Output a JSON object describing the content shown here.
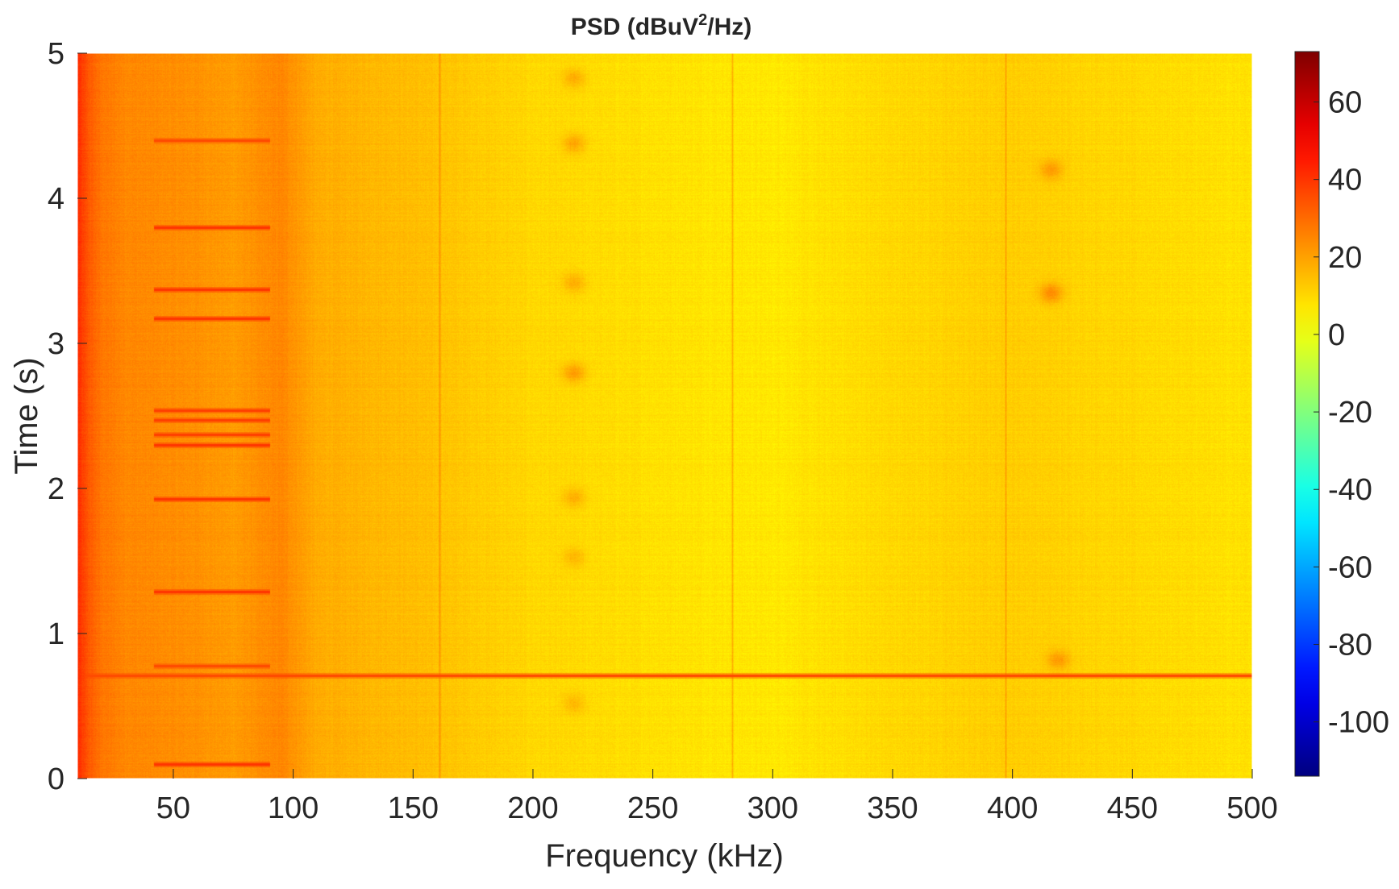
{
  "chart_data": {
    "type": "heatmap",
    "title": "PSD (dBuV",
    "title_superscript": "2",
    "title_suffix": "/Hz)",
    "xlabel": "Frequency (kHz)",
    "ylabel": "Time (s)",
    "xlim": [
      10,
      500
    ],
    "ylim": [
      0,
      5
    ],
    "xticks": [
      50,
      100,
      150,
      200,
      250,
      300,
      350,
      400,
      450,
      500
    ],
    "yticks": [
      0,
      1,
      2,
      3,
      4,
      5
    ],
    "colorbar": {
      "colormap": "jet",
      "limits": [
        -114,
        73
      ],
      "ticks": [
        60,
        40,
        20,
        0,
        -20,
        -40,
        -60,
        -80,
        -100
      ]
    },
    "grid": false,
    "frequency_profile_khz": [
      10,
      12,
      15,
      20,
      30,
      45,
      60,
      75,
      85,
      95,
      110,
      150,
      200,
      300,
      350,
      400,
      500
    ],
    "frequency_profile_db": [
      42,
      38,
      33,
      28,
      25,
      24,
      23,
      21,
      23,
      25,
      18,
      15,
      10,
      7,
      10,
      12,
      8
    ],
    "narrowband_lines_khz": [
      161,
      283,
      397
    ],
    "broadband_bursts": [
      {
        "time_s": 0.1,
        "f_start_khz": 42,
        "f_end_khz": 90,
        "level_db": 40
      },
      {
        "time_s": 0.71,
        "f_start_khz": 10,
        "f_end_khz": 500,
        "level_db": 36
      },
      {
        "time_s": 0.78,
        "f_start_khz": 42,
        "f_end_khz": 90,
        "level_db": 36
      },
      {
        "time_s": 1.29,
        "f_start_khz": 42,
        "f_end_khz": 90,
        "level_db": 40
      },
      {
        "time_s": 1.93,
        "f_start_khz": 42,
        "f_end_khz": 90,
        "level_db": 40
      },
      {
        "time_s": 2.3,
        "f_start_khz": 42,
        "f_end_khz": 90,
        "level_db": 40
      },
      {
        "time_s": 2.37,
        "f_start_khz": 42,
        "f_end_khz": 90,
        "level_db": 38
      },
      {
        "time_s": 2.47,
        "f_start_khz": 42,
        "f_end_khz": 90,
        "level_db": 38
      },
      {
        "time_s": 2.54,
        "f_start_khz": 42,
        "f_end_khz": 90,
        "level_db": 38
      },
      {
        "time_s": 3.17,
        "f_start_khz": 42,
        "f_end_khz": 90,
        "level_db": 40
      },
      {
        "time_s": 3.37,
        "f_start_khz": 42,
        "f_end_khz": 90,
        "level_db": 40
      },
      {
        "time_s": 3.8,
        "f_start_khz": 42,
        "f_end_khz": 90,
        "level_db": 40
      },
      {
        "time_s": 4.4,
        "f_start_khz": 42,
        "f_end_khz": 90,
        "level_db": 36
      }
    ],
    "hotspots": [
      {
        "f_khz": 217,
        "time_s": 4.83,
        "level_db": 20
      },
      {
        "f_khz": 217,
        "time_s": 4.38,
        "level_db": 22
      },
      {
        "f_khz": 217,
        "time_s": 3.42,
        "level_db": 20
      },
      {
        "f_khz": 217,
        "time_s": 2.8,
        "level_db": 24
      },
      {
        "f_khz": 217,
        "time_s": 1.94,
        "level_db": 20
      },
      {
        "f_khz": 217,
        "time_s": 1.53,
        "level_db": 18
      },
      {
        "f_khz": 217,
        "time_s": 0.52,
        "level_db": 18
      },
      {
        "f_khz": 416,
        "time_s": 4.2,
        "level_db": 22
      },
      {
        "f_khz": 416,
        "time_s": 3.35,
        "level_db": 26
      },
      {
        "f_khz": 419,
        "time_s": 0.82,
        "level_db": 22
      }
    ]
  }
}
